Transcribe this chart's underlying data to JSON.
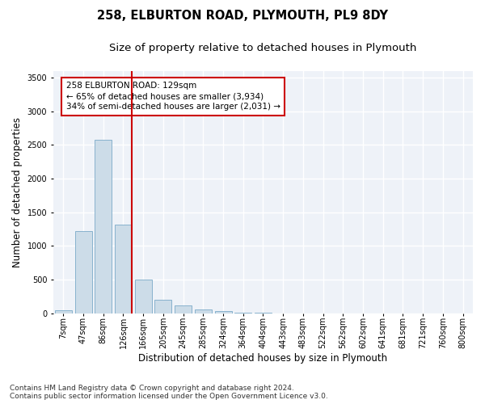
{
  "title_line1": "258, ELBURTON ROAD, PLYMOUTH, PL9 8DY",
  "title_line2": "Size of property relative to detached houses in Plymouth",
  "xlabel": "Distribution of detached houses by size in Plymouth",
  "ylabel": "Number of detached properties",
  "footer_line1": "Contains HM Land Registry data © Crown copyright and database right 2024.",
  "footer_line2": "Contains public sector information licensed under the Open Government Licence v3.0.",
  "annotation_line1": "258 ELBURTON ROAD: 129sqm",
  "annotation_line2": "← 65% of detached houses are smaller (3,934)",
  "annotation_line3": "34% of semi-detached houses are larger (2,031) →",
  "categories": [
    "7sqm",
    "47sqm",
    "86sqm",
    "126sqm",
    "166sqm",
    "205sqm",
    "245sqm",
    "285sqm",
    "324sqm",
    "364sqm",
    "404sqm",
    "443sqm",
    "483sqm",
    "522sqm",
    "562sqm",
    "602sqm",
    "641sqm",
    "681sqm",
    "721sqm",
    "760sqm",
    "800sqm"
  ],
  "values": [
    50,
    1220,
    2580,
    1320,
    500,
    200,
    120,
    55,
    30,
    10,
    5,
    2,
    1,
    0,
    0,
    0,
    0,
    0,
    0,
    0,
    0
  ],
  "bar_color": "#ccdce8",
  "bar_edge_color": "#7aaac8",
  "red_line_index": 3,
  "ylim": [
    0,
    3600
  ],
  "yticks": [
    0,
    500,
    1000,
    1500,
    2000,
    2500,
    3000,
    3500
  ],
  "bg_color": "#ffffff",
  "plot_bg_color": "#eef2f8",
  "grid_color": "#ffffff",
  "annotation_box_bg": "#ffffff",
  "annotation_box_edge": "#cc0000",
  "red_line_color": "#cc0000",
  "title1_fontsize": 10.5,
  "title2_fontsize": 9.5,
  "axis_label_fontsize": 8.5,
  "tick_fontsize": 7,
  "annotation_fontsize": 7.5,
  "footer_fontsize": 6.5
}
